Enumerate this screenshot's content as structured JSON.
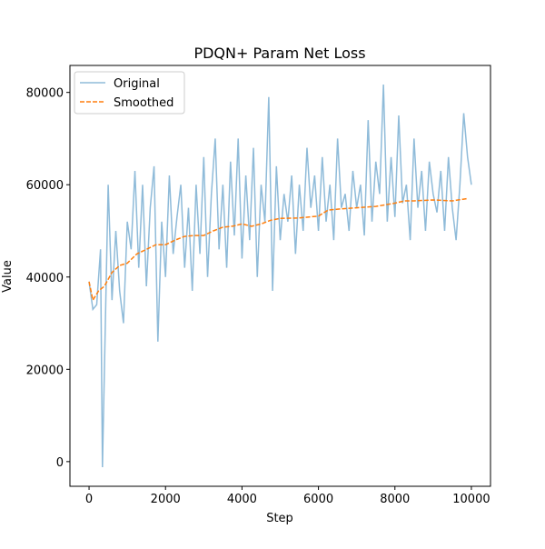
{
  "chart_data": {
    "type": "line",
    "title": "PDQN+ Param Net Loss",
    "x_label": "Step",
    "y_label": "Value",
    "xlim": [
      -500,
      10500
    ],
    "ylim": [
      -5345,
      85845
    ],
    "xticks": [
      0,
      2000,
      4000,
      6000,
      8000,
      10000
    ],
    "yticks": [
      0,
      20000,
      40000,
      60000,
      80000
    ],
    "legend": "upper left",
    "series": [
      {
        "name": "Original",
        "color": "#1f77b4",
        "opacity": 0.5,
        "dash": "solid",
        "x": [
          0,
          100,
          200,
          300,
          350,
          500,
          600,
          700,
          800,
          900,
          1000,
          1100,
          1200,
          1300,
          1400,
          1500,
          1600,
          1700,
          1800,
          1900,
          2000,
          2100,
          2200,
          2300,
          2400,
          2500,
          2600,
          2700,
          2800,
          2900,
          3000,
          3100,
          3200,
          3300,
          3400,
          3500,
          3600,
          3700,
          3800,
          3900,
          4000,
          4100,
          4200,
          4300,
          4400,
          4500,
          4600,
          4700,
          4800,
          4900,
          5000,
          5100,
          5200,
          5300,
          5400,
          5500,
          5600,
          5700,
          5800,
          5900,
          6000,
          6100,
          6200,
          6300,
          6400,
          6500,
          6600,
          6700,
          6800,
          6900,
          7000,
          7100,
          7200,
          7300,
          7400,
          7500,
          7600,
          7700,
          7800,
          7900,
          8000,
          8100,
          8200,
          8300,
          8400,
          8500,
          8600,
          8700,
          8800,
          8900,
          9000,
          9100,
          9200,
          9300,
          9400,
          9500,
          9600,
          9700,
          9800,
          9900,
          10000
        ],
        "values": [
          39000,
          33000,
          34000,
          46000,
          -1200,
          60000,
          35000,
          50000,
          37000,
          30000,
          52000,
          46000,
          63000,
          42000,
          60000,
          38000,
          55000,
          64000,
          26000,
          52000,
          40000,
          62000,
          45000,
          53000,
          60000,
          42000,
          55000,
          37000,
          60000,
          45000,
          66000,
          40000,
          58000,
          70000,
          46000,
          60000,
          42000,
          65000,
          49000,
          70000,
          44000,
          62000,
          48000,
          68000,
          40000,
          60000,
          52000,
          79000,
          37000,
          64000,
          48000,
          58000,
          52000,
          62000,
          45000,
          60000,
          50000,
          68000,
          55000,
          62000,
          50000,
          66000,
          52000,
          60000,
          48000,
          70000,
          55000,
          58000,
          50000,
          63000,
          55000,
          60000,
          49000,
          74000,
          52000,
          65000,
          58000,
          81700,
          52000,
          66000,
          53000,
          75000,
          56000,
          60000,
          48000,
          70000,
          55000,
          63000,
          50000,
          65000,
          58000,
          54000,
          63000,
          50000,
          66000,
          55000,
          48000,
          60000,
          75500,
          66000,
          60000
        ]
      },
      {
        "name": "Smoothed",
        "color": "#ff7f0e",
        "opacity": 1,
        "dash": "dashed",
        "x": [
          0,
          100,
          250,
          400,
          600,
          800,
          1000,
          1250,
          1500,
          1750,
          2000,
          2250,
          2500,
          2750,
          3000,
          3250,
          3500,
          3750,
          4000,
          4250,
          4500,
          4750,
          5000,
          5500,
          6000,
          6250,
          6500,
          7000,
          7500,
          8000,
          8250,
          8500,
          9000,
          9500,
          9900
        ],
        "values": [
          39000,
          35000,
          37000,
          38000,
          41000,
          42500,
          43000,
          45000,
          46000,
          47000,
          47000,
          48000,
          48800,
          49000,
          49000,
          50000,
          50800,
          51000,
          51500,
          51000,
          51500,
          52300,
          52700,
          52800,
          53200,
          54500,
          54700,
          55000,
          55300,
          56000,
          56500,
          56500,
          56700,
          56500,
          57000
        ]
      }
    ]
  }
}
